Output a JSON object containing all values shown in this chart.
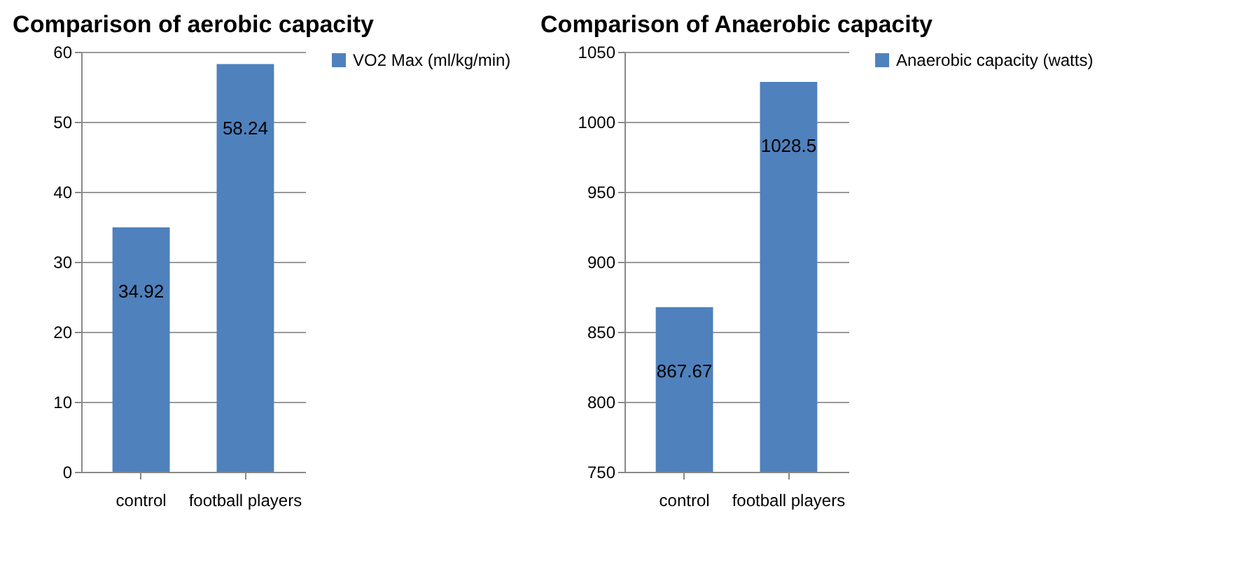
{
  "chart_data": [
    {
      "type": "bar",
      "title": "Comparison of aerobic capacity",
      "categories": [
        "control",
        "football players"
      ],
      "series": [
        {
          "name": "VO2 Max (ml/kg/min)",
          "color": "#4f81bd",
          "values": [
            34.92,
            58.24
          ]
        }
      ],
      "ylim": [
        0,
        60
      ],
      "yticks": [
        0,
        10,
        20,
        30,
        40,
        50,
        60
      ],
      "grid": "y",
      "legend": "right",
      "data_labels": true
    },
    {
      "type": "bar",
      "title": "Comparison of Anaerobic capacity",
      "categories": [
        "control",
        "football players"
      ],
      "series": [
        {
          "name": "Anaerobic capacity (watts)",
          "color": "#4f81bd",
          "values": [
            867.67,
            1028.5
          ]
        }
      ],
      "ylim": [
        750,
        1050
      ],
      "yticks": [
        750,
        800,
        850,
        900,
        950,
        1000,
        1050
      ],
      "grid": "y",
      "legend": "right",
      "data_labels": true
    }
  ]
}
